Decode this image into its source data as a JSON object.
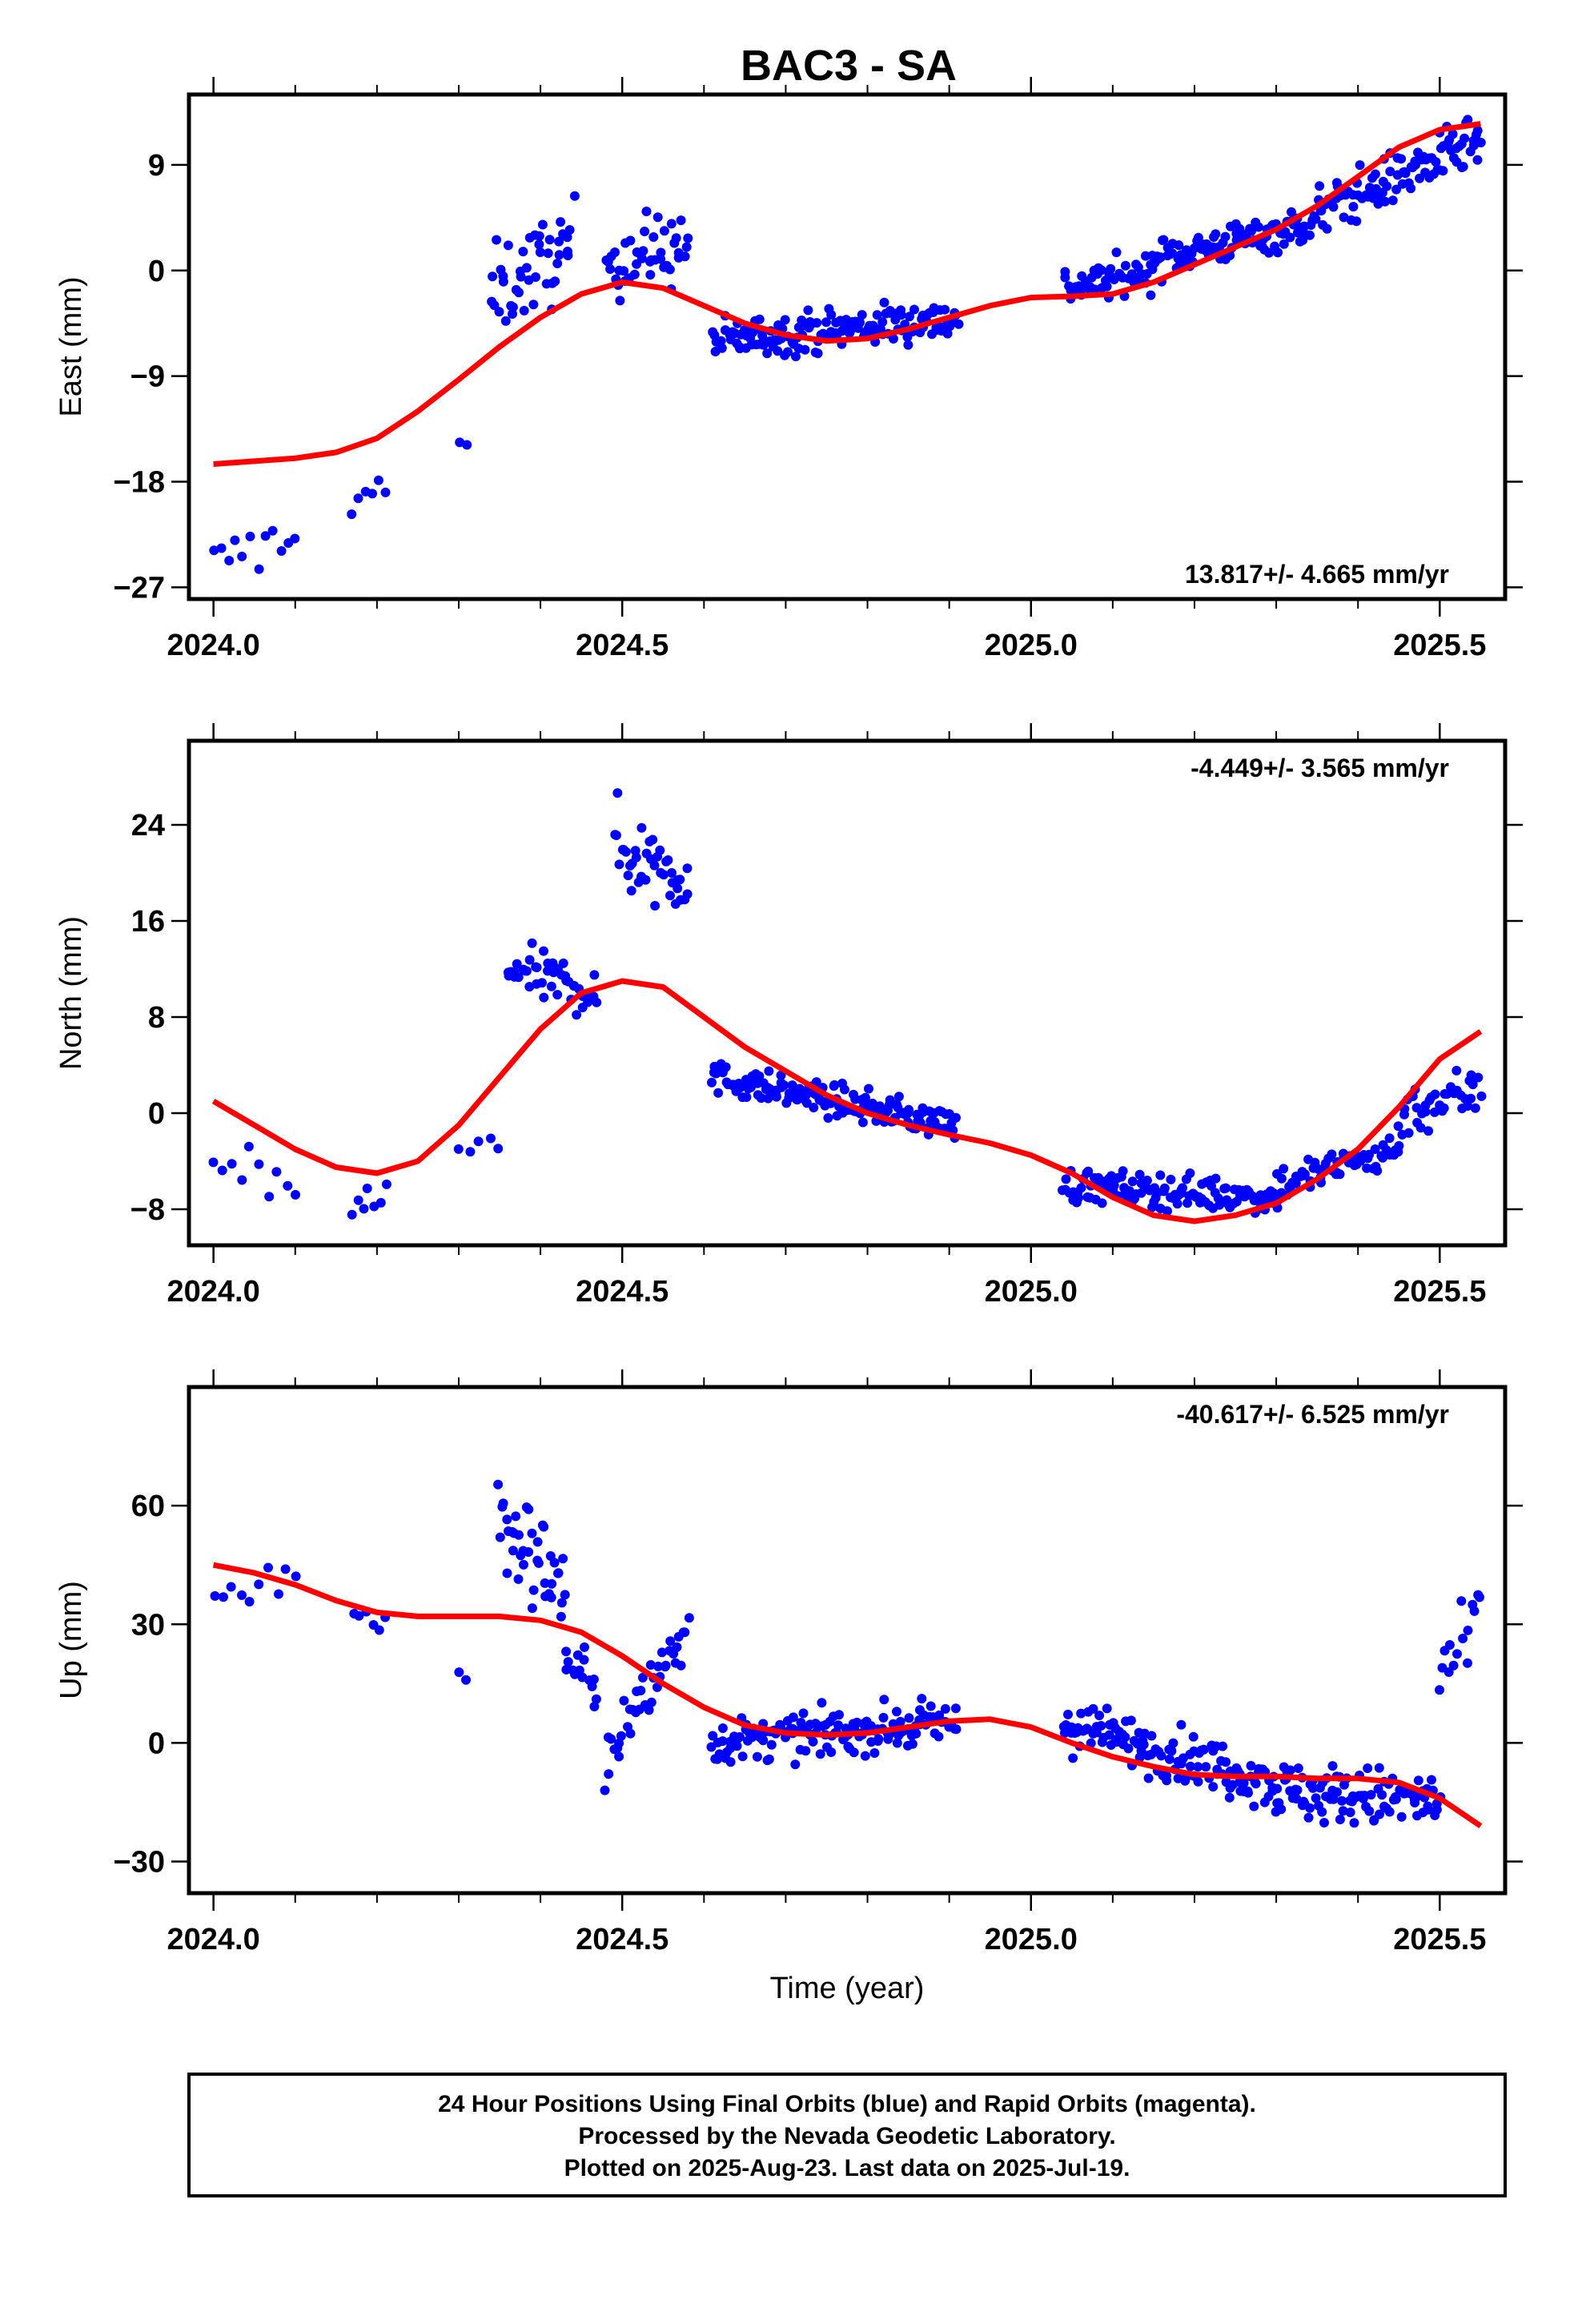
{
  "title": "BAC3 - SA",
  "colors": {
    "final": "#0000ff",
    "rapid": "#ff00ff",
    "fit": "#ff0000",
    "frame": "#000000"
  },
  "xlabel": "Time (year)",
  "footer": {
    "line1": "24 Hour Positions Using Final Orbits (blue) and Rapid Orbits (magenta).",
    "line2": "Processed by the Nevada Geodetic Laboratory.",
    "line3": "Plotted on 2025-Aug-23. Last data on 2025-Jul-19."
  },
  "chart_data": [
    {
      "type": "scatter",
      "component": "east",
      "ylabel": "East (mm)",
      "rate_label": "13.817+/- 4.665 mm/yr",
      "xlim": [
        2023.97,
        2025.58
      ],
      "ylim": [
        -28,
        15
      ],
      "xticks": [
        "2024.0",
        "2024.5",
        "2025.0",
        "2025.5"
      ],
      "xtick_values": [
        2024.0,
        2024.5,
        2025.0,
        2025.5
      ],
      "yticks": [
        "9",
        "0",
        "−9",
        "−18",
        "−27"
      ],
      "ytick_values": [
        9,
        0,
        -9,
        -18,
        -27
      ],
      "segments": [
        {
          "x0": 2024.0,
          "x1": 2024.1,
          "n": 12,
          "start": -25,
          "end": -22.5,
          "noise": 2
        },
        {
          "x0": 2024.17,
          "x1": 2024.21,
          "n": 6,
          "start": -19.5,
          "end": -18.5,
          "noise": 1.5
        },
        {
          "x0": 2024.3,
          "x1": 2024.31,
          "n": 2,
          "start": -15,
          "end": -15,
          "noise": 0.5
        },
        {
          "x0": 2024.34,
          "x1": 2024.44,
          "n": 45,
          "start": -2,
          "end": 2,
          "noise": 3.5
        },
        {
          "x0": 2024.48,
          "x1": 2024.58,
          "n": 45,
          "start": 1,
          "end": 2,
          "noise": 3
        },
        {
          "x0": 2024.61,
          "x1": 2024.91,
          "n": 150,
          "start": -6,
          "end": -4,
          "noise": 1.6
        },
        {
          "x0": 2025.04,
          "x1": 2025.15,
          "n": 50,
          "start": -1.5,
          "end": 0,
          "noise": 1.5
        },
        {
          "x0": 2025.15,
          "x1": 2025.35,
          "n": 100,
          "start": 1,
          "end": 4,
          "noise": 1.5
        },
        {
          "x0": 2025.35,
          "x1": 2025.55,
          "n": 100,
          "start": 5,
          "end": 11,
          "noise": 2
        }
      ],
      "fit": {
        "x": [
          2024.0,
          2024.1,
          2024.15,
          2024.2,
          2024.25,
          2024.3,
          2024.35,
          2024.4,
          2024.45,
          2024.5,
          2024.55,
          2024.6,
          2024.65,
          2024.7,
          2024.75,
          2024.8,
          2024.85,
          2024.9,
          2024.95,
          2025.0,
          2025.05,
          2025.1,
          2025.15,
          2025.2,
          2025.25,
          2025.3,
          2025.35,
          2025.4,
          2025.45,
          2025.5,
          2025.55
        ],
        "y": [
          -16.5,
          -16.0,
          -15.5,
          -14.3,
          -12.0,
          -9.3,
          -6.5,
          -4.0,
          -2.0,
          -1.0,
          -1.5,
          -3.0,
          -4.5,
          -5.5,
          -6.0,
          -5.8,
          -5.0,
          -4.0,
          -3.0,
          -2.3,
          -2.2,
          -2.0,
          -1.0,
          0.5,
          2.0,
          3.5,
          5.5,
          8.0,
          10.5,
          12.0,
          12.5
        ]
      }
    },
    {
      "type": "scatter",
      "component": "north",
      "ylabel": "North (mm)",
      "rate_label": "-4.449+/- 3.565 mm/yr",
      "xlim": [
        2023.97,
        2025.58
      ],
      "ylim": [
        -11,
        31
      ],
      "xticks": [
        "2024.0",
        "2024.5",
        "2025.0",
        "2025.5"
      ],
      "xtick_values": [
        2024.0,
        2024.5,
        2025.0,
        2025.5
      ],
      "yticks": [
        "24",
        "16",
        "8",
        "0",
        "−8"
      ],
      "ytick_values": [
        24,
        16,
        8,
        0,
        -8
      ],
      "segments": [
        {
          "x0": 2024.0,
          "x1": 2024.1,
          "n": 10,
          "start": -5,
          "end": -6,
          "noise": 2
        },
        {
          "x0": 2024.17,
          "x1": 2024.21,
          "n": 7,
          "start": -8,
          "end": -7,
          "noise": 1.5
        },
        {
          "x0": 2024.3,
          "x1": 2024.35,
          "n": 5,
          "start": -3,
          "end": -3,
          "noise": 1.5
        },
        {
          "x0": 2024.36,
          "x1": 2024.47,
          "n": 45,
          "start": 12,
          "end": 10,
          "noise": 2
        },
        {
          "x0": 2024.49,
          "x1": 2024.58,
          "n": 40,
          "start": 22,
          "end": 20,
          "noise": 3.5
        },
        {
          "x0": 2024.61,
          "x1": 2024.91,
          "n": 150,
          "start": 3,
          "end": -1,
          "noise": 1.2
        },
        {
          "x0": 2025.04,
          "x1": 2025.3,
          "n": 120,
          "start": -6,
          "end": -7,
          "noise": 1.3
        },
        {
          "x0": 2025.3,
          "x1": 2025.45,
          "n": 60,
          "start": -6,
          "end": -3,
          "noise": 1.5
        },
        {
          "x0": 2025.45,
          "x1": 2025.55,
          "n": 40,
          "start": 0,
          "end": 2,
          "noise": 2
        }
      ],
      "fit": {
        "x": [
          2024.0,
          2024.05,
          2024.1,
          2024.15,
          2024.2,
          2024.25,
          2024.3,
          2024.35,
          2024.4,
          2024.45,
          2024.5,
          2024.55,
          2024.6,
          2024.65,
          2024.7,
          2024.75,
          2024.8,
          2024.85,
          2024.9,
          2024.95,
          2025.0,
          2025.05,
          2025.1,
          2025.15,
          2025.2,
          2025.25,
          2025.3,
          2025.35,
          2025.4,
          2025.45,
          2025.5,
          2025.55
        ],
        "y": [
          1.0,
          -1.0,
          -3.0,
          -4.5,
          -5.0,
          -4.0,
          -1.0,
          3.0,
          7.0,
          10.0,
          11.0,
          10.5,
          8.0,
          5.5,
          3.5,
          1.5,
          0.0,
          -1.0,
          -1.8,
          -2.5,
          -3.5,
          -5.0,
          -7.0,
          -8.5,
          -9.0,
          -8.5,
          -7.5,
          -5.5,
          -3.0,
          0.5,
          4.5,
          6.8
        ]
      }
    },
    {
      "type": "scatter",
      "component": "up",
      "ylabel": "Up (mm)",
      "rate_label": "-40.617+/- 6.525 mm/yr",
      "xlim": [
        2023.97,
        2025.58
      ],
      "ylim": [
        -38,
        90
      ],
      "xticks": [
        "2024.0",
        "2024.5",
        "2025.0",
        "2025.5"
      ],
      "xtick_values": [
        2024.0,
        2024.5,
        2025.0,
        2025.5
      ],
      "yticks": [
        "60",
        "30",
        "0",
        "−30"
      ],
      "ytick_values": [
        60,
        30,
        0,
        -30
      ],
      "segments": [
        {
          "x0": 2024.0,
          "x1": 2024.1,
          "n": 10,
          "start": 38,
          "end": 45,
          "noise": 8
        },
        {
          "x0": 2024.17,
          "x1": 2024.21,
          "n": 6,
          "start": 35,
          "end": 28,
          "noise": 5
        },
        {
          "x0": 2024.3,
          "x1": 2024.31,
          "n": 2,
          "start": 18,
          "end": 18,
          "noise": 3
        },
        {
          "x0": 2024.35,
          "x1": 2024.43,
          "n": 40,
          "start": 55,
          "end": 40,
          "noise": 12
        },
        {
          "x0": 2024.43,
          "x1": 2024.47,
          "n": 15,
          "start": 20,
          "end": 15,
          "noise": 6
        },
        {
          "x0": 2024.48,
          "x1": 2024.58,
          "n": 40,
          "start": -5,
          "end": 30,
          "noise": 8
        },
        {
          "x0": 2024.61,
          "x1": 2024.91,
          "n": 150,
          "start": 0,
          "end": 5,
          "noise": 5
        },
        {
          "x0": 2025.04,
          "x1": 2025.3,
          "n": 130,
          "start": 5,
          "end": -10,
          "noise": 6
        },
        {
          "x0": 2025.3,
          "x1": 2025.5,
          "n": 100,
          "start": -12,
          "end": -15,
          "noise": 7
        },
        {
          "x0": 2025.5,
          "x1": 2025.55,
          "n": 15,
          "start": 15,
          "end": 30,
          "noise": 10
        }
      ],
      "fit": {
        "x": [
          2024.0,
          2024.05,
          2024.1,
          2024.15,
          2024.2,
          2024.25,
          2024.3,
          2024.35,
          2024.4,
          2024.45,
          2024.5,
          2024.55,
          2024.6,
          2024.65,
          2024.7,
          2024.75,
          2024.8,
          2024.85,
          2024.9,
          2024.95,
          2025.0,
          2025.05,
          2025.1,
          2025.15,
          2025.2,
          2025.25,
          2025.3,
          2025.35,
          2025.4,
          2025.45,
          2025.5,
          2025.55
        ],
        "y": [
          45.0,
          43.0,
          40.0,
          36.0,
          33.0,
          32.0,
          32.0,
          32.0,
          31.0,
          28.0,
          22.0,
          15.0,
          9.0,
          4.5,
          2.5,
          2.0,
          2.5,
          4.0,
          5.5,
          6.0,
          4.0,
          0.0,
          -3.5,
          -6.0,
          -8.0,
          -8.5,
          -8.5,
          -9.0,
          -9.0,
          -10.0,
          -14.0,
          -21.0
        ]
      }
    }
  ]
}
